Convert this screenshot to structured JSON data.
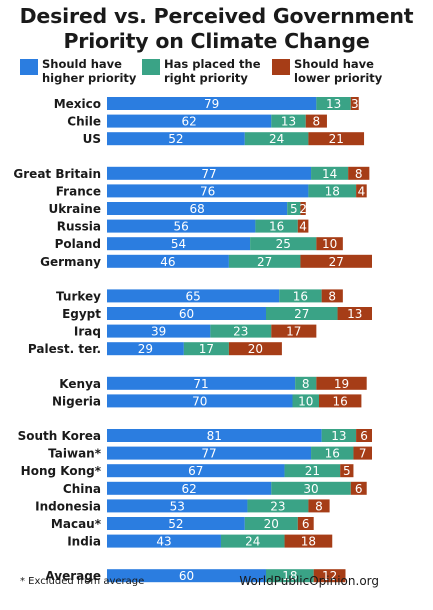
{
  "title_lines": [
    "Desired vs. Perceived Government",
    "Priority on Climate Change"
  ],
  "legend": [
    {
      "label_lines": [
        "Should have",
        "higher priority"
      ],
      "color": "#2b7de0"
    },
    {
      "label_lines": [
        "Has placed the",
        "right priority"
      ],
      "color": "#3aa386"
    },
    {
      "label_lines": [
        "Should have",
        "lower priority"
      ],
      "color": "#a63d17"
    }
  ],
  "footnote": "* Excluded from average",
  "source": "WorldPublicOpinion.org",
  "chart_data": {
    "type": "bar",
    "orientation": "horizontal",
    "stacked": true,
    "categories": [
      "Mexico",
      "Chile",
      "US",
      "Great Britain",
      "France",
      "Ukraine",
      "Russia",
      "Poland",
      "Germany",
      "Turkey",
      "Egypt",
      "Iraq",
      "Palest. ter.",
      "Kenya",
      "Nigeria",
      "South Korea",
      "Taiwan*",
      "Hong Kong*",
      "China",
      "Indonesia",
      "Macau*",
      "India",
      "Average"
    ],
    "groups": [
      [
        0,
        1,
        2
      ],
      [
        3,
        4,
        5,
        6,
        7,
        8
      ],
      [
        9,
        10,
        11,
        12
      ],
      [
        13,
        14
      ],
      [
        15,
        16,
        17,
        18,
        19,
        20,
        21
      ],
      [
        22
      ]
    ],
    "series": [
      {
        "name": "Should have higher priority",
        "color": "#2b7de0",
        "values": [
          79,
          62,
          52,
          77,
          76,
          68,
          56,
          54,
          46,
          65,
          60,
          39,
          29,
          71,
          70,
          81,
          77,
          67,
          62,
          53,
          52,
          43,
          60
        ]
      },
      {
        "name": "Has placed the right priority",
        "color": "#3aa386",
        "values": [
          13,
          13,
          24,
          14,
          18,
          5,
          16,
          25,
          27,
          16,
          27,
          23,
          17,
          8,
          10,
          13,
          16,
          21,
          30,
          23,
          20,
          24,
          18
        ]
      },
      {
        "name": "Should have lower priority",
        "color": "#a63d17",
        "values": [
          3,
          8,
          21,
          8,
          4,
          2,
          4,
          10,
          27,
          8,
          13,
          17,
          20,
          19,
          16,
          6,
          7,
          5,
          6,
          8,
          6,
          18,
          12
        ]
      }
    ],
    "value_labels": [
      [
        "79",
        "13",
        "3"
      ],
      [
        "62",
        "13",
        "8"
      ],
      [
        "52",
        "24",
        "21"
      ],
      [
        "77",
        "14",
        "8"
      ],
      [
        "76",
        "18",
        "4"
      ],
      [
        "68",
        "5",
        "2"
      ],
      [
        "56",
        "16",
        "4"
      ],
      [
        "54",
        "25",
        "10"
      ],
      [
        "46",
        "27",
        "27"
      ],
      [
        "65",
        "16",
        "8"
      ],
      [
        "60",
        "27",
        "13"
      ],
      [
        "39",
        "23",
        "17"
      ],
      [
        "29",
        "17",
        "20"
      ],
      [
        "71",
        "8",
        "19"
      ],
      [
        "70",
        "10",
        "16"
      ],
      [
        "81",
        "13",
        "6"
      ],
      [
        "77",
        "16",
        "7"
      ],
      [
        "67",
        "21",
        "5"
      ],
      [
        "62",
        "30",
        "6"
      ],
      [
        "53",
        "23",
        "8"
      ],
      [
        "52",
        "20",
        "6"
      ],
      [
        "43",
        "24",
        "18"
      ],
      [
        "60",
        "18",
        "12"
      ]
    ],
    "xlim": [
      0,
      100
    ],
    "grid": false,
    "legend_position": "top"
  }
}
